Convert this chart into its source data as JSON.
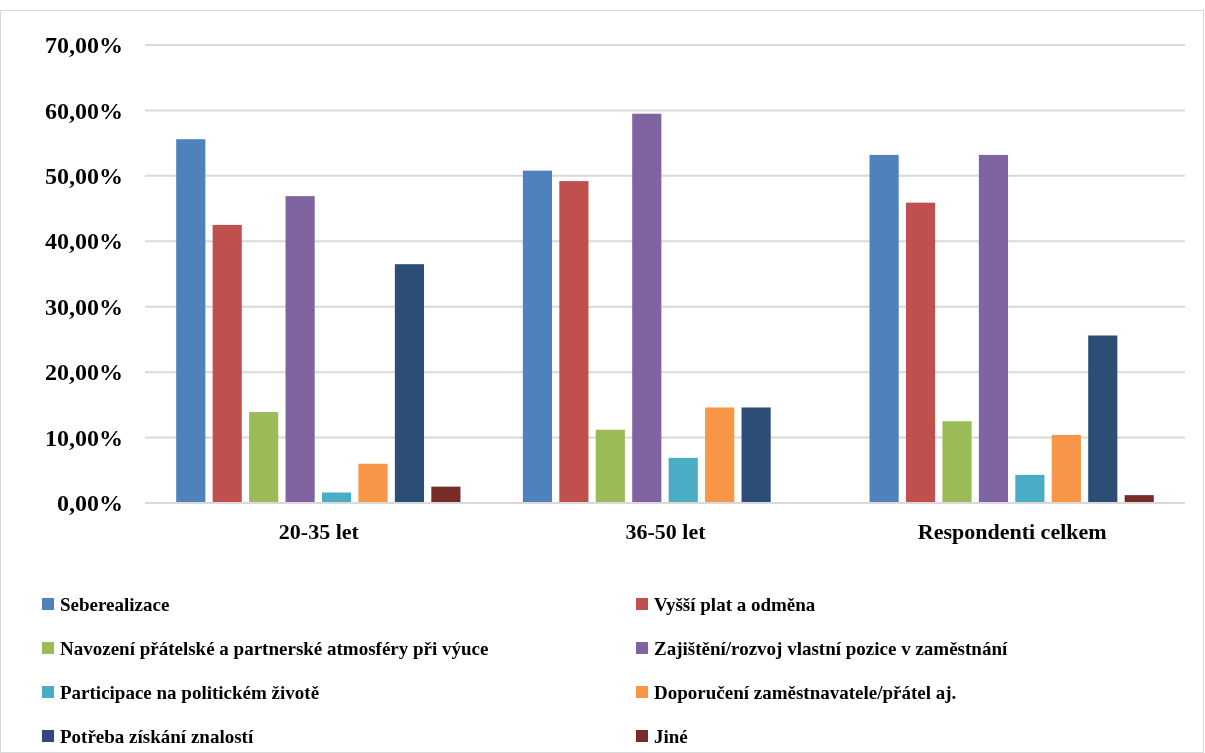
{
  "chart_data": {
    "type": "bar",
    "categories": [
      "20-35 let",
      "36-50 let",
      "Respondenti celkem"
    ],
    "series": [
      {
        "name": "Seberealizace",
        "color": "#4f81bd",
        "values": [
          55.6,
          50.8,
          53.2
        ]
      },
      {
        "name": "Vyšší plat a odměna",
        "color": "#c0504d",
        "values": [
          42.5,
          49.2,
          45.9
        ]
      },
      {
        "name": "Navození přátelské a partnerské atmosféry při výuce",
        "color": "#9bbb59",
        "values": [
          13.9,
          11.2,
          12.5
        ]
      },
      {
        "name": "Zajištění/rozvoj vlastní pozice v zaměstnání",
        "color": "#8064a2",
        "values": [
          46.9,
          59.5,
          53.2
        ]
      },
      {
        "name": "Participace na politickém životě",
        "color": "#4bacc6",
        "values": [
          1.6,
          6.9,
          4.3
        ]
      },
      {
        "name": "Doporučení zaměstnavatele/přátel aj.",
        "color": "#f79646",
        "values": [
          6.0,
          14.6,
          10.4
        ]
      },
      {
        "name": "Potřeba získání znalostí",
        "color": "#2c4d75",
        "values": [
          36.5,
          14.6,
          25.6
        ]
      },
      {
        "name": "Jiné",
        "color": "#772c2a",
        "values": [
          2.5,
          0,
          1.2
        ]
      }
    ],
    "ylim": [
      0,
      70
    ],
    "yticks": [
      {
        "value": 0,
        "label": "0,00%"
      },
      {
        "value": 10,
        "label": "10,00%"
      },
      {
        "value": 20,
        "label": "20,00%"
      },
      {
        "value": 30,
        "label": "30,00%"
      },
      {
        "value": 40,
        "label": "40,00%"
      },
      {
        "value": 50,
        "label": "50,00%"
      },
      {
        "value": 60,
        "label": "60,00%"
      },
      {
        "value": 70,
        "label": "70,00%"
      }
    ],
    "grid": "y",
    "legend": "bottom"
  }
}
